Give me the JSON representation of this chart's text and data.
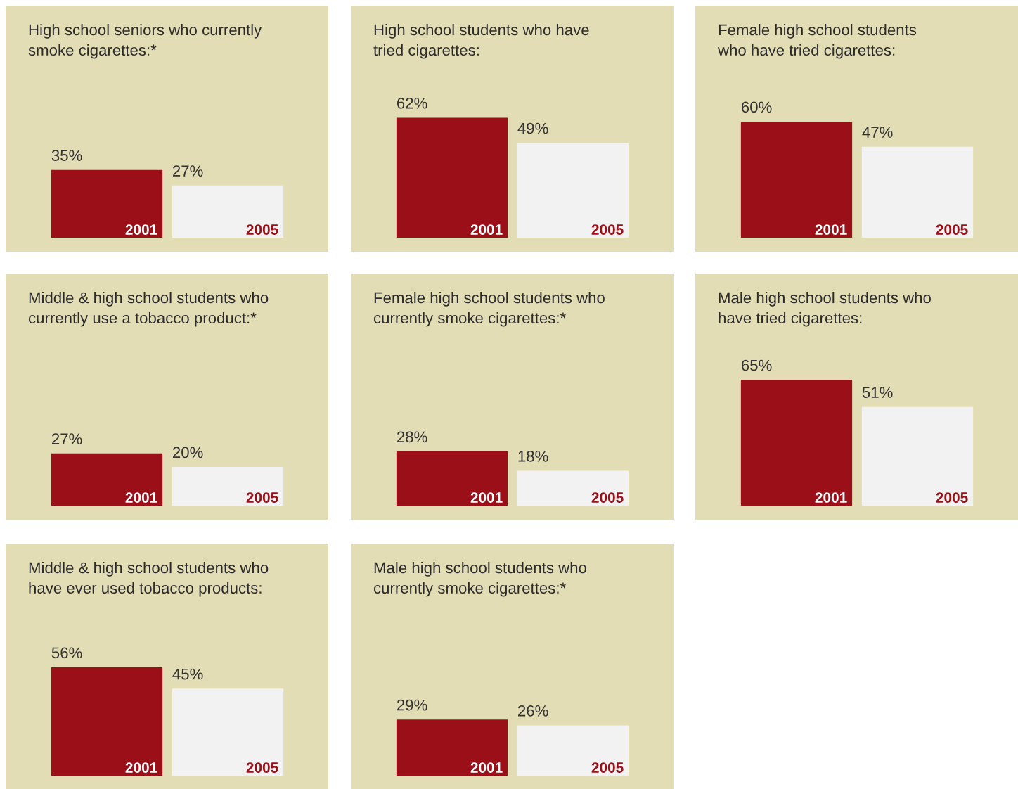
{
  "chart_data": [
    {
      "type": "bar",
      "title": "High school seniors who currently\nsmoke cigarettes:*",
      "categories": [
        "2001",
        "2005"
      ],
      "values": [
        35,
        27
      ],
      "colors": [
        "#9b1018",
        "#f2f2f2"
      ],
      "value_labels": [
        "35%",
        "27%"
      ]
    },
    {
      "type": "bar",
      "title": "High school students who have\ntried cigarettes:",
      "categories": [
        "2001",
        "2005"
      ],
      "values": [
        62,
        49
      ],
      "colors": [
        "#9b1018",
        "#f2f2f2"
      ],
      "value_labels": [
        "62%",
        "49%"
      ]
    },
    {
      "type": "bar",
      "title": "Female high school students\nwho have tried cigarettes:",
      "categories": [
        "2001",
        "2005"
      ],
      "values": [
        60,
        47
      ],
      "colors": [
        "#9b1018",
        "#f2f2f2"
      ],
      "value_labels": [
        "60%",
        "47%"
      ]
    },
    {
      "type": "bar",
      "title": "Middle & high school students who\ncurrently use a tobacco product:*",
      "categories": [
        "2001",
        "2005"
      ],
      "values": [
        27,
        20
      ],
      "colors": [
        "#9b1018",
        "#f2f2f2"
      ],
      "value_labels": [
        "27%",
        "20%"
      ]
    },
    {
      "type": "bar",
      "title": "Female high school students who\ncurrently smoke cigarettes:*",
      "categories": [
        "2001",
        "2005"
      ],
      "values": [
        28,
        18
      ],
      "colors": [
        "#9b1018",
        "#f2f2f2"
      ],
      "value_labels": [
        "28%",
        "18%"
      ]
    },
    {
      "type": "bar",
      "title": "Male high school students who\nhave tried cigarettes:",
      "categories": [
        "2001",
        "2005"
      ],
      "values": [
        65,
        51
      ],
      "colors": [
        "#9b1018",
        "#f2f2f2"
      ],
      "value_labels": [
        "65%",
        "51%"
      ]
    },
    {
      "type": "bar",
      "title": "Middle & high school students who\nhave ever used tobacco products:",
      "categories": [
        "2001",
        "2005"
      ],
      "values": [
        56,
        45
      ],
      "colors": [
        "#9b1018",
        "#f2f2f2"
      ],
      "value_labels": [
        "56%",
        "45%"
      ]
    },
    {
      "type": "bar",
      "title": "Male high school students who\ncurrently smoke cigarettes:*",
      "categories": [
        "2001",
        "2005"
      ],
      "values": [
        29,
        26
      ],
      "colors": [
        "#9b1018",
        "#f2f2f2"
      ],
      "value_labels": [
        "29%",
        "26%"
      ]
    }
  ]
}
